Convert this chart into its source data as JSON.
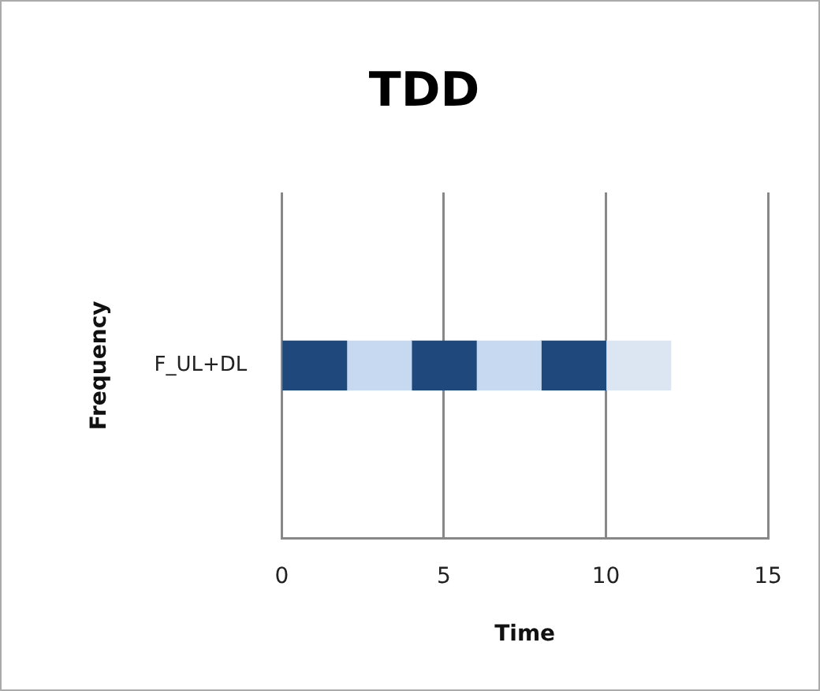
{
  "chart_data": {
    "type": "bar",
    "orientation": "horizontal",
    "stacked": true,
    "title": "TDD",
    "xlabel": "Time",
    "ylabel": "Frequency",
    "categories": [
      "F_UL+DL"
    ],
    "series": [
      {
        "color": "#1f497d",
        "values": [
          2
        ]
      },
      {
        "color": "#c6d9f1",
        "values": [
          2
        ]
      },
      {
        "color": "#1f497d",
        "values": [
          2
        ]
      },
      {
        "color": "#c6d9f1",
        "values": [
          2
        ]
      },
      {
        "color": "#1f497d",
        "values": [
          2
        ]
      },
      {
        "color": "#dce6f2",
        "values": [
          2
        ]
      }
    ],
    "xlim": [
      0,
      15
    ],
    "xticks": [
      0,
      5,
      10,
      15
    ],
    "grid": "x",
    "legend": false
  }
}
